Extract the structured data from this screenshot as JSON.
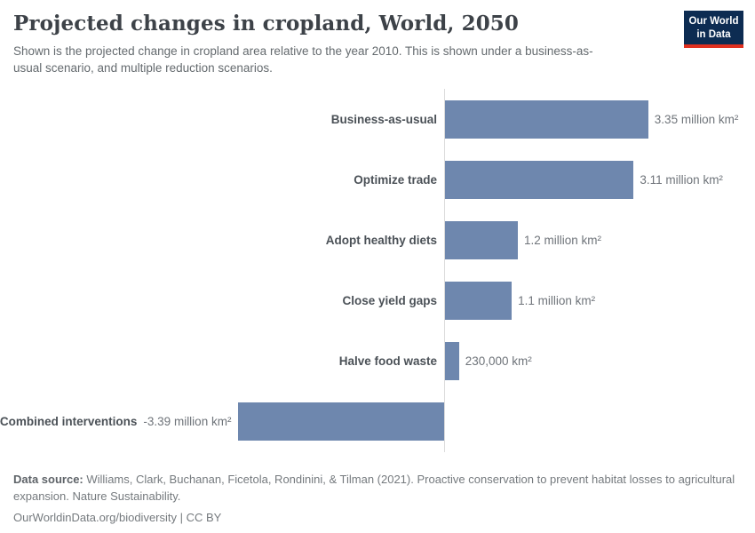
{
  "header": {
    "title": "Projected changes in cropland, World, 2050",
    "subtitle": "Shown is the projected change in cropland area relative to the year 2010. This is shown under a business-as-usual scenario, and multiple reduction scenarios.",
    "logo": {
      "line1": "Our World",
      "line2": "in Data",
      "bg_color": "#0d2c52",
      "accent_color": "#e0301f"
    }
  },
  "chart_data": {
    "type": "bar",
    "orientation": "horizontal",
    "title": "Projected changes in cropland, World, 2050",
    "unit": "million km²",
    "categories": [
      "Business-as-usual",
      "Optimize trade",
      "Adopt healthy diets",
      "Close yield gaps",
      "Halve food waste",
      "Combined interventions"
    ],
    "values": [
      3.35,
      3.11,
      1.2,
      1.1,
      0.23,
      -3.39
    ],
    "value_labels": [
      "3.35 million km²",
      "3.11 million km²",
      "1.2 million km²",
      "1.1 million km²",
      "230,000 km²",
      "-3.39 million km²"
    ],
    "baseline": 0,
    "xlim": [
      -3.39,
      3.35
    ],
    "grid": false,
    "legend": "none",
    "bar_color": "#6e87ae",
    "axis_line_color": "#dcdcdc"
  },
  "footer": {
    "datasource_label": "Data source:",
    "datasource_text": "Williams, Clark, Buchanan, Ficetola, Rondinini, & Tilman (2021). Proactive conservation to prevent habitat losses to agricultural expansion. Nature Sustainability.",
    "license_text": "OurWorldinData.org/biodiversity | CC BY"
  }
}
